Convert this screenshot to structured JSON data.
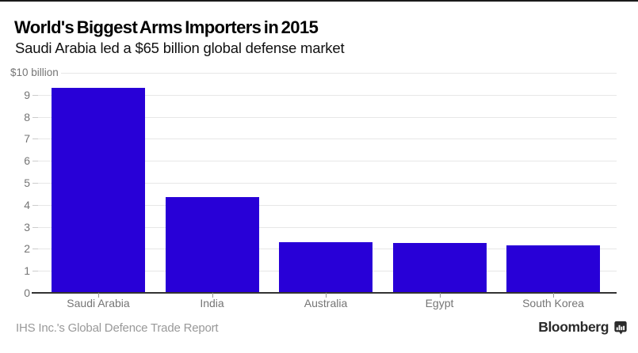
{
  "header": {
    "title": "World's Biggest Arms Importers in 2015",
    "subtitle": "Saudi Arabia led a $65 billion global defense market"
  },
  "chart_data": {
    "type": "bar",
    "categories": [
      "Saudi Arabia",
      "India",
      "Australia",
      "Egypt",
      "South Korea"
    ],
    "values": [
      9.3,
      4.35,
      2.3,
      2.25,
      2.15
    ],
    "title": "World's Biggest Arms Importers in 2015",
    "subtitle": "Saudi Arabia led a $65 billion global defense market",
    "unit_label": "$10 billion",
    "xlabel": "",
    "ylabel": "$ billion",
    "ylim": [
      0,
      10
    ],
    "ytick_step": 1,
    "grid": true,
    "legend": false,
    "bar_color": "#2800D7",
    "gridline_color": "#e7e7e7",
    "axis_label_color": "#757575"
  },
  "footer": {
    "source": "IHS Inc.'s Global Defence Trade Report",
    "brand": "Bloomberg",
    "brand_icon": "bloomberg-terminal-icon"
  }
}
